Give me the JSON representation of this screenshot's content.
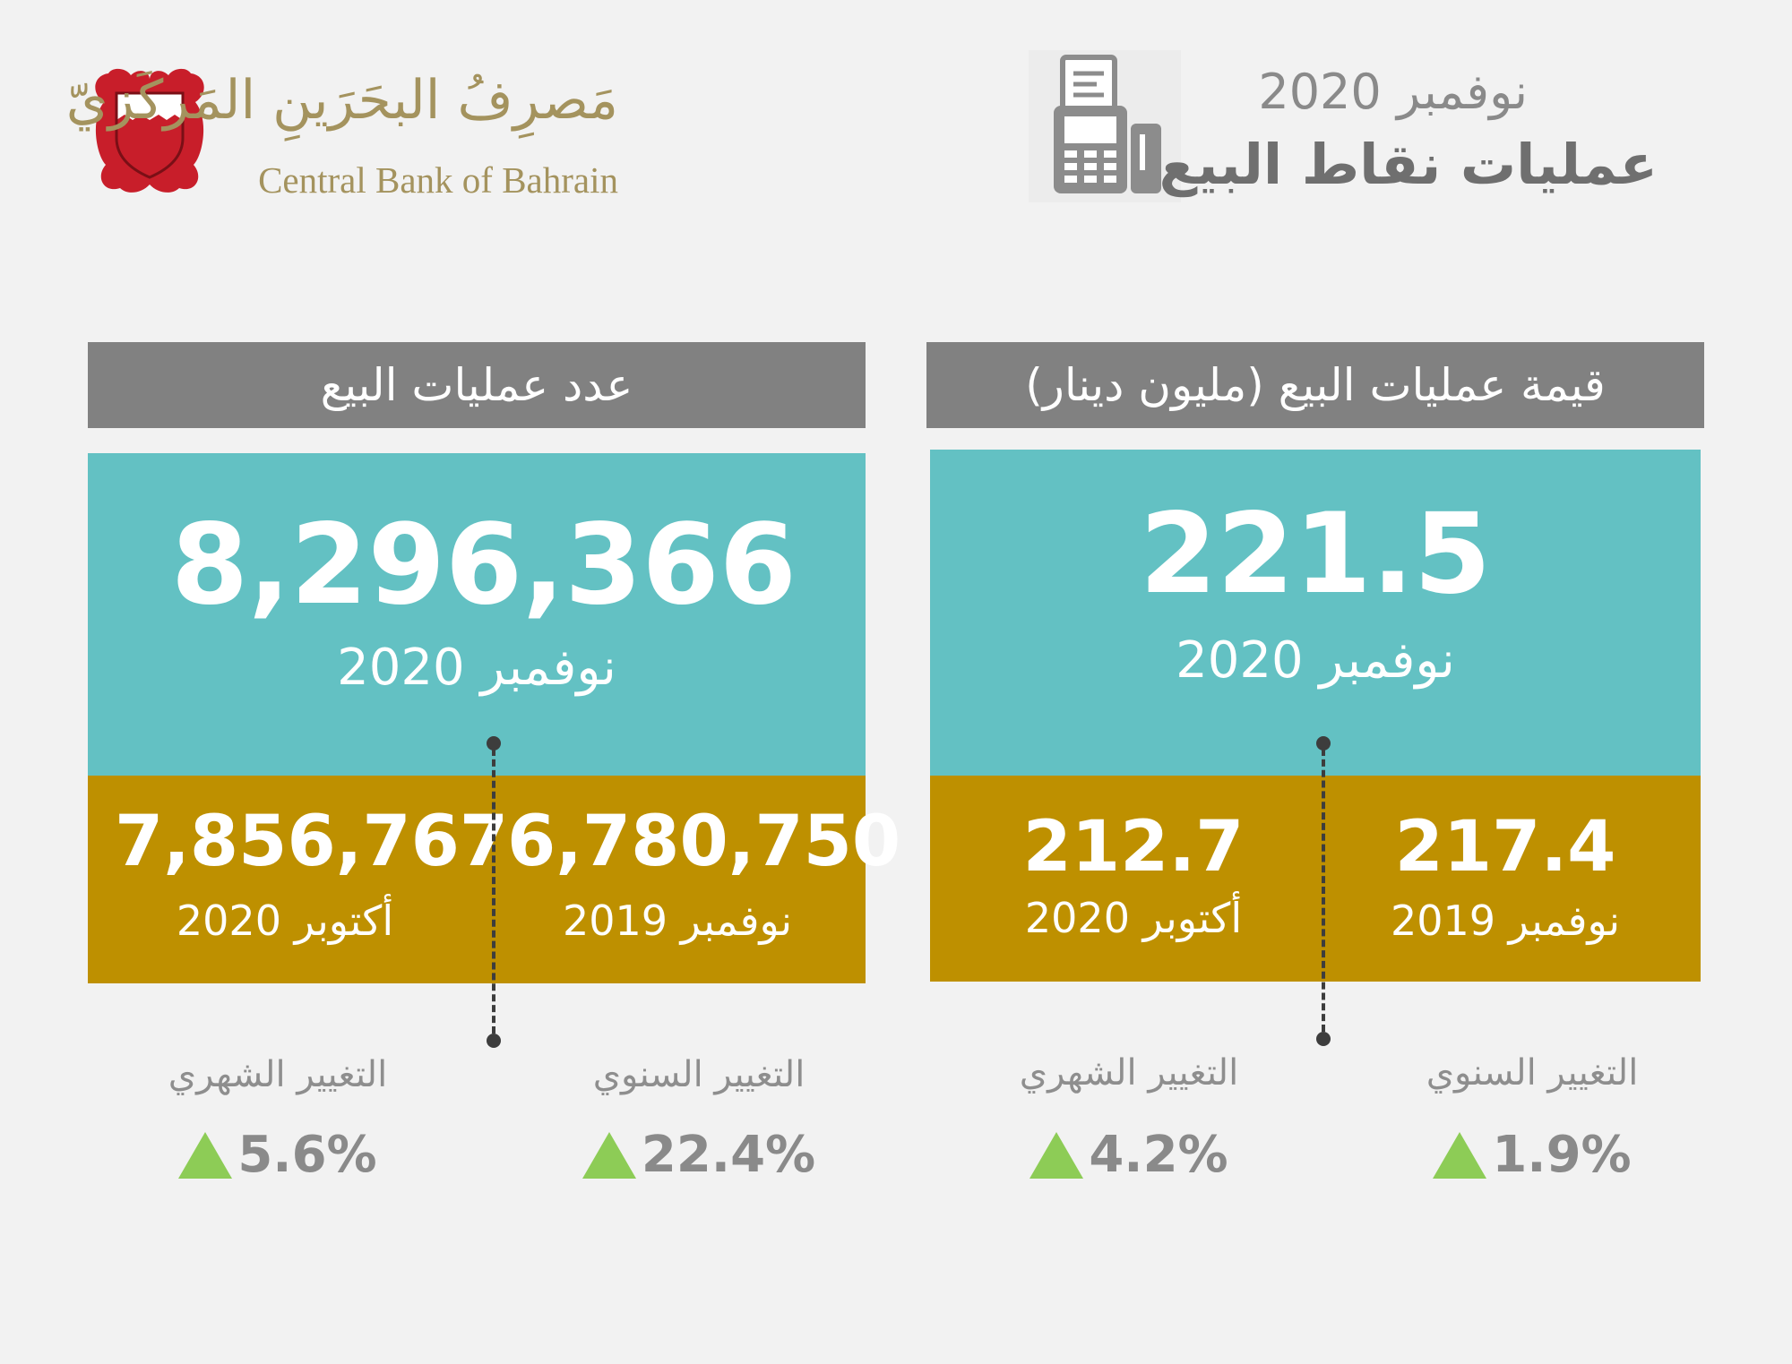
{
  "header": {
    "bank_name_ar": "مَصرِفُ البحَرَينِ المَركَزيّ",
    "bank_name_en": "Central Bank of Bahrain",
    "date": "نوفمبر 2020",
    "title": "عمليات نقاط البيع"
  },
  "value_panel": {
    "title": "قيمة عمليات البيع (مليون دينار)",
    "current": {
      "value": "221.5",
      "date": "نوفمبر 2020"
    },
    "prev_year": {
      "value": "217.4",
      "date": "نوفمبر 2019"
    },
    "prev_month": {
      "value": "212.7",
      "date": "أكتوبر 2020"
    },
    "yearly_change": {
      "label": "التغيير السنوي",
      "value": "1.9%"
    },
    "monthly_change": {
      "label": "التغيير الشهري",
      "value": "4.2%"
    }
  },
  "count_panel": {
    "title": "عدد عمليات البيع",
    "current": {
      "value": "8,296,366",
      "date": "نوفمبر 2020"
    },
    "prev_year": {
      "value": "6,780,750",
      "date": "نوفمبر 2019"
    },
    "prev_month": {
      "value": "7,856,767",
      "date": "أكتوبر 2020"
    },
    "yearly_change": {
      "label": "التغيير السنوي",
      "value": "22.4%"
    },
    "monthly_change": {
      "label": "التغيير الشهري",
      "value": "5.6%"
    }
  },
  "colors": {
    "teal": "#63c1c3",
    "gold": "#be9000",
    "header_gray": "#818181",
    "up_arrow": "#8dcc56"
  },
  "icons": {
    "emblem": "bahrain-emblem-icon",
    "pos_terminal": "pos-terminal-icon",
    "trend": "up-triangle-icon"
  }
}
